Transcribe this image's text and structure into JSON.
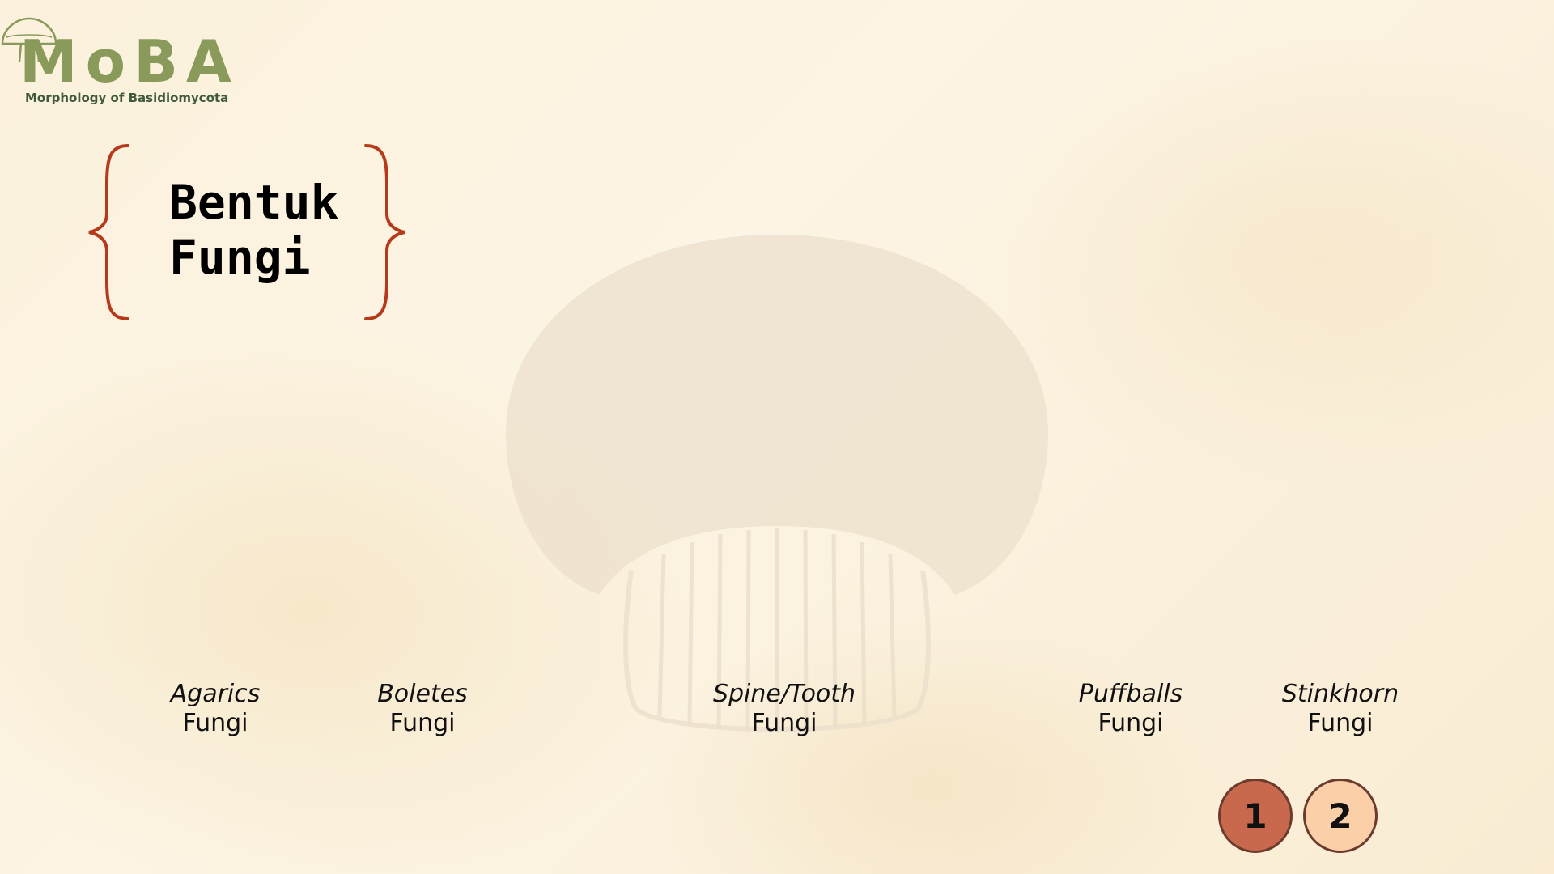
{
  "logo": {
    "text": "MoBA",
    "subtitle": "Morphology of Basidiomycota"
  },
  "title": {
    "text": "Bentuk\nFungi"
  },
  "categories": [
    {
      "name": "Agarics",
      "kind": "Fungi"
    },
    {
      "name": "Boletes",
      "kind": "Fungi"
    },
    {
      "name": "Spine/Tooth",
      "kind": "Fungi"
    },
    {
      "name": "Puffballs",
      "kind": "Fungi"
    },
    {
      "name": "Stinkhorn",
      "kind": "Fungi"
    }
  ],
  "pagination": {
    "pages": [
      "1",
      "2"
    ],
    "current": "1"
  },
  "colors": {
    "logo": "#8a9a5b",
    "brace": "#b5391a",
    "active_page": "#c8684d",
    "inactive_page": "#fbd0a8",
    "page_border": "#6b3b2e"
  }
}
